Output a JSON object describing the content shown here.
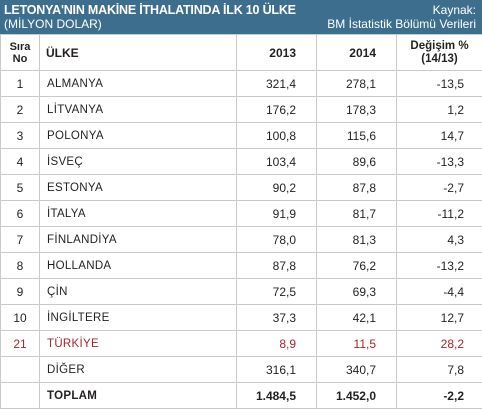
{
  "header": {
    "title": "LETONYA'NIN MAKİNE İTHALATINDA İLK 10 ÜLKE",
    "subtitle": "(MİLYON DOLAR)",
    "source_label": "Kaynak:",
    "source_value": "BM İstatistik Bölümü Verileri",
    "bg_color": "#3d6e8e"
  },
  "columns": {
    "rank_line1": "Sıra",
    "rank_line2": "No",
    "country": "ÜLKE",
    "y2013": "2013",
    "y2014": "2014",
    "change_line1": "Değişim %",
    "change_line2": "(14/13)"
  },
  "rows": [
    {
      "rank": "1",
      "country": "ALMANYA",
      "v2013": "321,4",
      "v2014": "278,1",
      "change": "-13,5"
    },
    {
      "rank": "2",
      "country": "LİTVANYA",
      "v2013": "176,2",
      "v2014": "178,3",
      "change": "1,2"
    },
    {
      "rank": "3",
      "country": "POLONYA",
      "v2013": "100,8",
      "v2014": "115,6",
      "change": "14,7"
    },
    {
      "rank": "4",
      "country": "İSVEÇ",
      "v2013": "103,4",
      "v2014": "89,6",
      "change": "-13,3"
    },
    {
      "rank": "5",
      "country": "ESTONYA",
      "v2013": "90,2",
      "v2014": "87,8",
      "change": "-2,7"
    },
    {
      "rank": "6",
      "country": "İTALYA",
      "v2013": "91,9",
      "v2014": "81,7",
      "change": "-11,2"
    },
    {
      "rank": "7",
      "country": "FİNLANDİYA",
      "v2013": "78,0",
      "v2014": "81,3",
      "change": "4,3"
    },
    {
      "rank": "8",
      "country": "HOLLANDA",
      "v2013": "87,8",
      "v2014": "76,2",
      "change": "-13,2"
    },
    {
      "rank": "9",
      "country": "ÇİN",
      "v2013": "72,5",
      "v2014": "69,3",
      "change": "-4,4"
    },
    {
      "rank": "10",
      "country": "İNGİLTERE",
      "v2013": "37,3",
      "v2014": "42,1",
      "change": "12,7"
    },
    {
      "rank": "21",
      "country": "TÜRKİYE",
      "v2013": "8,9",
      "v2014": "11,5",
      "change": "28,2",
      "highlight": true
    },
    {
      "rank": "",
      "country": "DİĞER",
      "v2013": "316,1",
      "v2014": "340,7",
      "change": "7,8"
    }
  ],
  "total": {
    "label": "TOPLAM",
    "v2013": "1.484,5",
    "v2014": "1.452,0",
    "change": "-2,2"
  },
  "colors": {
    "highlight_text": "#a3272b",
    "border": "#c9c9c9"
  }
}
